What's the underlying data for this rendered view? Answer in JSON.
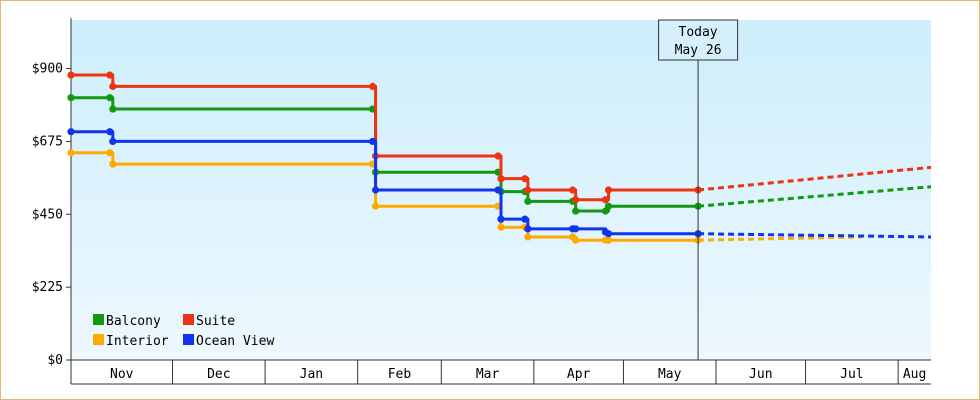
{
  "chart_data": {
    "type": "line",
    "title": "",
    "xlabel": "",
    "ylabel": "",
    "y_ticks": [
      "$0",
      "$225",
      "$450",
      "$675",
      "$900"
    ],
    "y_tick_values": [
      0,
      225,
      450,
      675,
      900
    ],
    "ylim": [
      0,
      1050
    ],
    "x_months": [
      "Nov",
      "Dec",
      "Jan",
      "Feb",
      "Mar",
      "Apr",
      "May",
      "Jun",
      "Jul",
      "Aug"
    ],
    "xlim": [
      0,
      288
    ],
    "x_unit": "days from Oct 28",
    "today": {
      "line1": "Today",
      "line2": "May 26",
      "x": 210
    },
    "legend": {
      "placement": "bottom-left"
    },
    "series": [
      {
        "name": "Balcony",
        "color": "#119911",
        "points": [
          [
            0,
            810
          ],
          [
            13,
            810
          ],
          [
            14,
            775
          ],
          [
            101,
            775
          ],
          [
            102,
            580
          ],
          [
            143,
            580
          ],
          [
            144,
            520
          ],
          [
            152,
            520
          ],
          [
            153,
            490
          ],
          [
            168,
            490
          ],
          [
            169,
            460
          ],
          [
            179,
            460
          ],
          [
            180,
            475
          ],
          [
            210,
            475
          ]
        ],
        "projection": [
          [
            210,
            475
          ],
          [
            288,
            535
          ]
        ]
      },
      {
        "name": "Suite",
        "color": "#ee3311",
        "points": [
          [
            0,
            880
          ],
          [
            13,
            880
          ],
          [
            14,
            845
          ],
          [
            101,
            845
          ],
          [
            102,
            630
          ],
          [
            143,
            630
          ],
          [
            144,
            560
          ],
          [
            152,
            560
          ],
          [
            153,
            525
          ],
          [
            168,
            525
          ],
          [
            169,
            495
          ],
          [
            179,
            495
          ],
          [
            180,
            525
          ],
          [
            210,
            525
          ]
        ],
        "projection": [
          [
            210,
            525
          ],
          [
            288,
            595
          ]
        ]
      },
      {
        "name": "Interior",
        "color": "#ffaa00",
        "points": [
          [
            0,
            640
          ],
          [
            13,
            640
          ],
          [
            14,
            605
          ],
          [
            101,
            605
          ],
          [
            102,
            475
          ],
          [
            143,
            475
          ],
          [
            144,
            410
          ],
          [
            152,
            410
          ],
          [
            153,
            380
          ],
          [
            168,
            380
          ],
          [
            169,
            370
          ],
          [
            179,
            370
          ],
          [
            180,
            370
          ],
          [
            210,
            370
          ]
        ],
        "projection": [
          [
            210,
            370
          ],
          [
            265,
            380
          ]
        ]
      },
      {
        "name": "Ocean View",
        "color": "#1133ee",
        "points": [
          [
            0,
            705
          ],
          [
            13,
            705
          ],
          [
            14,
            675
          ],
          [
            101,
            675
          ],
          [
            102,
            525
          ],
          [
            143,
            525
          ],
          [
            144,
            435
          ],
          [
            152,
            435
          ],
          [
            153,
            405
          ],
          [
            168,
            405
          ],
          [
            169,
            405
          ],
          [
            179,
            395
          ],
          [
            180,
            390
          ],
          [
            210,
            390
          ]
        ],
        "projection": [
          [
            210,
            390
          ],
          [
            288,
            380
          ]
        ]
      }
    ]
  },
  "colors": {
    "plot_top": "#cdeefc",
    "plot_bottom": "#eef8fe",
    "border": "#e8b86a"
  }
}
